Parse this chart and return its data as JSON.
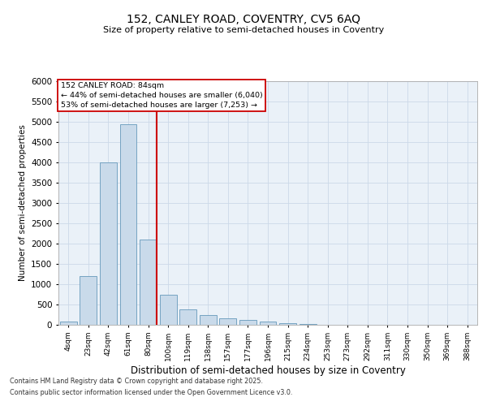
{
  "title1": "152, CANLEY ROAD, COVENTRY, CV5 6AQ",
  "title2": "Size of property relative to semi-detached houses in Coventry",
  "xlabel": "Distribution of semi-detached houses by size in Coventry",
  "ylabel": "Number of semi-detached properties",
  "categories": [
    "4sqm",
    "23sqm",
    "42sqm",
    "61sqm",
    "80sqm",
    "100sqm",
    "119sqm",
    "138sqm",
    "157sqm",
    "177sqm",
    "196sqm",
    "215sqm",
    "234sqm",
    "253sqm",
    "273sqm",
    "292sqm",
    "311sqm",
    "330sqm",
    "350sqm",
    "369sqm",
    "388sqm"
  ],
  "values": [
    75,
    1200,
    4000,
    4950,
    2100,
    750,
    380,
    250,
    170,
    130,
    75,
    50,
    20,
    10,
    0,
    0,
    0,
    0,
    0,
    0,
    0
  ],
  "bar_color": "#c9daea",
  "bar_edge_color": "#6699bb",
  "vline_color": "#cc0000",
  "vline_pos": 4.43,
  "annotation_title": "152 CANLEY ROAD: 84sqm",
  "annotation_line1": "← 44% of semi-detached houses are smaller (6,040)",
  "annotation_line2": "53% of semi-detached houses are larger (7,253) →",
  "annotation_box_color": "#cc0000",
  "ylim": [
    0,
    6000
  ],
  "yticks": [
    0,
    500,
    1000,
    1500,
    2000,
    2500,
    3000,
    3500,
    4000,
    4500,
    5000,
    5500,
    6000
  ],
  "grid_color": "#ccd9e8",
  "bg_color": "#eaf1f8",
  "footer1": "Contains HM Land Registry data © Crown copyright and database right 2025.",
  "footer2": "Contains public sector information licensed under the Open Government Licence v3.0."
}
